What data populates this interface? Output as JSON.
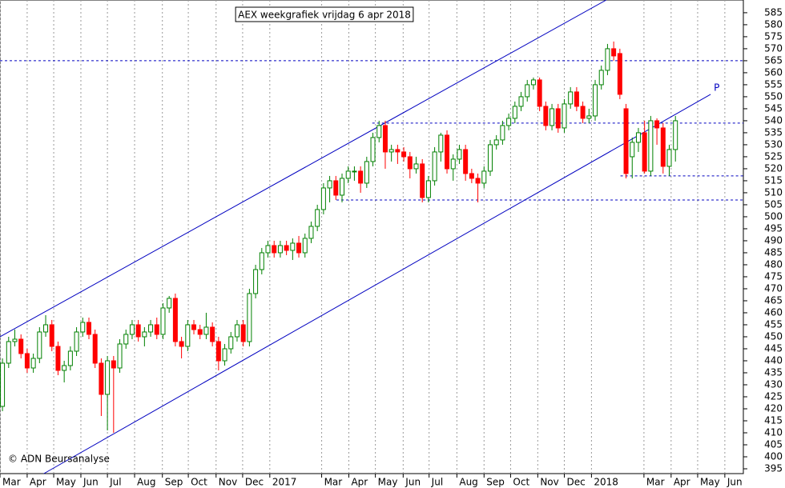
{
  "chart_data": {
    "type": "candlestick",
    "title": "AEX weekgrafiek vrijdag 6 apr 2018",
    "credit": "© ADN Beursanalyse",
    "annotation": "P",
    "up_color": "#008000",
    "down_color": "#ff0000",
    "line_color": "#0000c0",
    "grid": "x",
    "xlim": [
      -0.4,
      120
    ],
    "ylim": [
      393,
      590.3
    ],
    "yticks": [
      395,
      400,
      405,
      410,
      415,
      420,
      425,
      430,
      435,
      440,
      445,
      450,
      455,
      460,
      465,
      470,
      475,
      480,
      485,
      490,
      495,
      500,
      505,
      510,
      515,
      520,
      525,
      530,
      535,
      540,
      545,
      550,
      555,
      560,
      565,
      570,
      575,
      580,
      585
    ],
    "xticks": [
      {
        "value": -0.4,
        "label": "Mar"
      },
      {
        "value": 4,
        "label": "Apr"
      },
      {
        "value": 8.3,
        "label": "May"
      },
      {
        "value": 12.7,
        "label": "Jun"
      },
      {
        "value": 17,
        "label": "Jul"
      },
      {
        "value": 21.4,
        "label": "Aug"
      },
      {
        "value": 25.9,
        "label": "Sep"
      },
      {
        "value": 30.1,
        "label": "Oct"
      },
      {
        "value": 34.6,
        "label": "Nov"
      },
      {
        "value": 38.9,
        "label": "Dec"
      },
      {
        "value": 43.3,
        "label": "2017"
      },
      {
        "value": 51.7,
        "label": "Mar"
      },
      {
        "value": 56.1,
        "label": "Apr"
      },
      {
        "value": 60.4,
        "label": "May"
      },
      {
        "value": 64.9,
        "label": "Jun"
      },
      {
        "value": 69.1,
        "label": "Jul"
      },
      {
        "value": 73.6,
        "label": "Aug"
      },
      {
        "value": 78,
        "label": "Sep"
      },
      {
        "value": 82.3,
        "label": "Oct"
      },
      {
        "value": 86.7,
        "label": "Nov"
      },
      {
        "value": 91,
        "label": "Dec"
      },
      {
        "value": 95.4,
        "label": "2018"
      },
      {
        "value": 103.9,
        "label": "Mar"
      },
      {
        "value": 108.3,
        "label": "Apr"
      },
      {
        "value": 112.6,
        "label": "May"
      },
      {
        "value": 117,
        "label": "Jun"
      }
    ],
    "x": [
      0,
      1,
      2,
      3,
      4,
      5,
      6,
      7,
      8,
      9,
      10,
      11,
      12,
      13,
      14,
      15,
      16,
      17,
      18,
      19,
      20,
      21,
      22,
      23,
      24,
      25,
      26,
      27,
      28,
      29,
      30,
      31,
      32,
      33,
      34,
      35,
      36,
      37,
      38,
      39,
      40,
      41,
      42,
      43,
      44,
      45,
      46,
      47,
      48,
      49,
      50,
      51,
      52,
      53,
      54,
      55,
      56,
      57,
      58,
      59,
      60,
      61,
      62,
      63,
      64,
      65,
      66,
      67,
      68,
      69,
      70,
      71,
      72,
      73,
      74,
      75,
      76,
      77,
      78,
      79,
      80,
      81,
      82,
      83,
      84,
      85,
      86,
      87,
      88,
      89,
      90,
      91,
      92,
      93,
      94,
      95,
      96,
      97,
      98,
      99,
      100,
      101,
      102,
      103,
      104,
      105,
      106,
      107,
      108,
      109
    ],
    "open": [
      421,
      439,
      448,
      449,
      443,
      437,
      441,
      452,
      455,
      446,
      436,
      438,
      444,
      452,
      456,
      451,
      439,
      426,
      440,
      437,
      447,
      451,
      455,
      450,
      452,
      455,
      451,
      462,
      466,
      448,
      446,
      455,
      453,
      451,
      454,
      448,
      440,
      445,
      450,
      455,
      448,
      468,
      478,
      485,
      488,
      485,
      488,
      486,
      489,
      485,
      491,
      496,
      503,
      512,
      515,
      509,
      516,
      519,
      519,
      514,
      523,
      533,
      538,
      527,
      528,
      527,
      525,
      520,
      522,
      508,
      515,
      527,
      534,
      520,
      524,
      528,
      518,
      516,
      514,
      519,
      530,
      532,
      538,
      541,
      546,
      550,
      555,
      557,
      546,
      538,
      545,
      537,
      547,
      552,
      546,
      541,
      542,
      555,
      561,
      570,
      568,
      545,
      525,
      531,
      535,
      519,
      540,
      537,
      521,
      528
    ],
    "high": [
      441,
      450,
      453,
      451,
      445,
      443,
      454,
      459,
      457,
      448,
      440,
      446,
      454,
      458,
      458,
      453,
      441,
      442,
      442,
      449,
      453,
      457,
      457,
      454,
      457,
      458,
      464,
      467,
      468,
      450,
      457,
      457,
      455,
      460,
      456,
      450,
      447,
      452,
      457,
      457,
      470,
      480,
      487,
      490,
      490,
      490,
      490,
      491,
      492,
      493,
      498,
      505,
      514,
      517,
      517,
      518,
      521,
      521,
      521,
      525,
      535,
      540,
      540,
      530,
      530,
      529,
      527,
      525,
      524,
      517,
      529,
      535,
      536,
      526,
      530,
      530,
      520,
      518,
      521,
      532,
      534,
      540,
      543,
      548,
      552,
      557,
      558,
      558,
      548,
      547,
      547,
      549,
      554,
      554,
      548,
      545,
      557,
      563,
      572,
      573,
      570,
      547,
      533,
      537,
      540,
      542,
      541,
      539,
      530,
      542
    ],
    "low": [
      419,
      437,
      446,
      441,
      435,
      435,
      439,
      450,
      444,
      434,
      431,
      436,
      442,
      450,
      449,
      437,
      417,
      411,
      410,
      435,
      445,
      449,
      448,
      446,
      450,
      449,
      449,
      460,
      446,
      441,
      444,
      451,
      449,
      449,
      446,
      436,
      438,
      443,
      448,
      446,
      446,
      466,
      476,
      483,
      483,
      483,
      484,
      482,
      483,
      483,
      489,
      494,
      501,
      506,
      507,
      506,
      514,
      515,
      510,
      512,
      521,
      531,
      520,
      523,
      522,
      523,
      516,
      518,
      506,
      506,
      513,
      523,
      518,
      515,
      522,
      515,
      514,
      506,
      512,
      517,
      528,
      530,
      536,
      539,
      544,
      548,
      553,
      544,
      536,
      536,
      535,
      535,
      545,
      544,
      539,
      539,
      540,
      553,
      559,
      565,
      549,
      516,
      516,
      527,
      518,
      517,
      530,
      518,
      517,
      523
    ],
    "close": [
      439,
      448,
      449,
      443,
      437,
      441,
      452,
      455,
      446,
      436,
      438,
      444,
      452,
      456,
      451,
      439,
      426,
      440,
      437,
      447,
      451,
      455,
      450,
      452,
      455,
      451,
      462,
      466,
      448,
      446,
      455,
      453,
      451,
      454,
      448,
      440,
      445,
      450,
      455,
      448,
      468,
      478,
      485,
      488,
      485,
      488,
      486,
      489,
      485,
      491,
      496,
      503,
      512,
      515,
      509,
      516,
      519,
      519,
      514,
      523,
      533,
      538,
      527,
      528,
      527,
      525,
      520,
      522,
      508,
      515,
      527,
      534,
      520,
      524,
      528,
      518,
      516,
      514,
      519,
      530,
      532,
      538,
      541,
      546,
      550,
      555,
      557,
      546,
      538,
      545,
      537,
      547,
      552,
      546,
      541,
      542,
      555,
      561,
      570,
      567,
      551,
      518,
      531,
      535,
      519,
      540,
      537,
      521,
      528,
      540
    ],
    "trendlines": [
      {
        "x": [
          -0.4,
          97.8
        ],
        "y": [
          450,
          590.3
        ]
      },
      {
        "x": [
          6.7,
          114.7
        ],
        "y": [
          393,
          551
        ]
      }
    ],
    "hlines": [
      {
        "value": 565,
        "from": -0.4
      },
      {
        "value": 539,
        "from": 59.9
      },
      {
        "value": 507,
        "from": 54.1
      },
      {
        "value": 517,
        "from": 100.1
      }
    ]
  }
}
